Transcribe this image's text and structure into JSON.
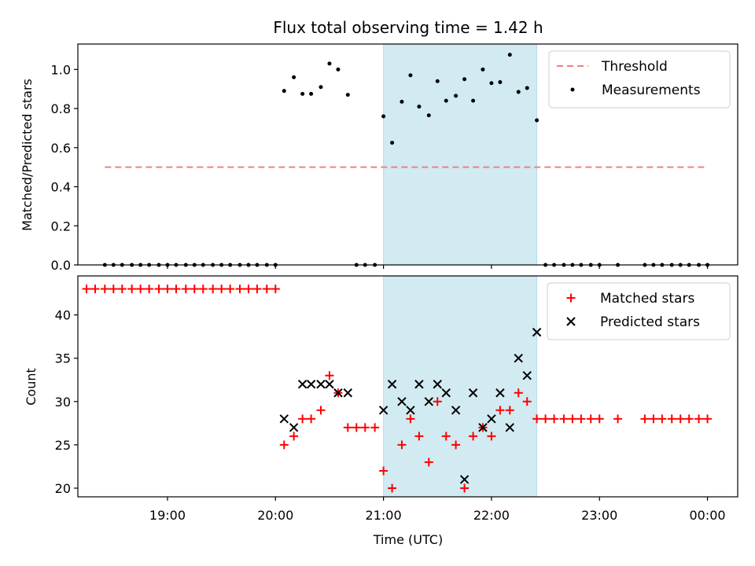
{
  "chart_data": [
    {
      "type": "scatter",
      "title": "Flux total observing time = 1.42 h",
      "ylabel": "Matched/Predicted stars",
      "xlabel": "",
      "xlim": [
        18.17,
        24.28
      ],
      "ylim": [
        0,
        1.13
      ],
      "yticks": [
        0.0,
        0.2,
        0.4,
        0.6,
        0.8,
        1.0
      ],
      "ytick_labels": [
        "0.0",
        "0.2",
        "0.4",
        "0.6",
        "0.8",
        "1.0"
      ],
      "shaded_span": {
        "x0": 21.0,
        "x1": 22.42,
        "color": "#add8e6"
      },
      "legend": {
        "position": "top-right"
      },
      "threshold": {
        "name": "Threshold",
        "x": [
          18.42,
          24.0
        ],
        "y": 0.5,
        "color": "#f08080"
      },
      "series": [
        {
          "name": "Measurements",
          "color": "#000000",
          "x": [
            18.42,
            18.5,
            18.58,
            18.67,
            18.75,
            18.83,
            18.92,
            19.0,
            19.08,
            19.17,
            19.25,
            19.33,
            19.42,
            19.5,
            19.58,
            19.67,
            19.75,
            19.83,
            19.92,
            20.0,
            20.08,
            20.17,
            20.25,
            20.33,
            20.42,
            20.5,
            20.58,
            20.67,
            20.75,
            20.83,
            20.92,
            21.0,
            21.08,
            21.17,
            21.25,
            21.33,
            21.42,
            21.5,
            21.58,
            21.67,
            21.75,
            21.83,
            21.92,
            22.0,
            22.08,
            22.17,
            22.25,
            22.33,
            22.42,
            22.5,
            22.58,
            22.67,
            22.75,
            22.83,
            22.92,
            23.0,
            23.17,
            23.42,
            23.5,
            23.58,
            23.67,
            23.75,
            23.83,
            23.92,
            24.0
          ],
          "y": [
            0,
            0,
            0,
            0,
            0,
            0,
            0,
            0,
            0,
            0,
            0,
            0,
            0,
            0,
            0,
            0,
            0,
            0,
            0,
            0,
            0.89,
            0.96,
            0.875,
            0.875,
            0.91,
            1.03,
            1.0,
            0.87,
            0,
            0,
            0,
            0.76,
            0.625,
            0.835,
            0.97,
            0.81,
            0.765,
            0.94,
            0.84,
            0.865,
            0.95,
            0.84,
            1.0,
            0.93,
            0.935,
            1.075,
            0.885,
            0.905,
            0.74,
            0,
            0,
            0,
            0,
            0,
            0,
            0,
            0,
            0,
            0,
            0,
            0,
            0,
            0,
            0,
            0
          ]
        }
      ]
    },
    {
      "type": "scatter",
      "title": "",
      "ylabel": "Count",
      "xlabel": "Time (UTC)",
      "xlim": [
        18.17,
        24.28
      ],
      "ylim": [
        19,
        44.5
      ],
      "yticks": [
        20,
        25,
        30,
        35,
        40
      ],
      "ytick_labels": [
        "20",
        "25",
        "30",
        "35",
        "40"
      ],
      "xticks": [
        19,
        20,
        21,
        22,
        23,
        24
      ],
      "xtick_labels": [
        "19:00",
        "20:00",
        "21:00",
        "22:00",
        "23:00",
        "00:00"
      ],
      "shaded_span": {
        "x0": 21.0,
        "x1": 22.42,
        "color": "#add8e6"
      },
      "legend": {
        "position": "top-right"
      },
      "series": [
        {
          "name": "Matched stars",
          "color": "#ff0000",
          "marker": "plus",
          "x": [
            18.25,
            18.33,
            18.42,
            18.5,
            18.58,
            18.67,
            18.75,
            18.83,
            18.92,
            19.0,
            19.08,
            19.17,
            19.25,
            19.33,
            19.42,
            19.5,
            19.58,
            19.67,
            19.75,
            19.83,
            19.92,
            20.0,
            20.08,
            20.17,
            20.25,
            20.33,
            20.42,
            20.5,
            20.58,
            20.67,
            20.75,
            20.83,
            20.92,
            21.0,
            21.08,
            21.17,
            21.25,
            21.33,
            21.42,
            21.5,
            21.58,
            21.67,
            21.75,
            21.83,
            21.92,
            22.0,
            22.08,
            22.17,
            22.25,
            22.33,
            22.42,
            22.5,
            22.58,
            22.67,
            22.75,
            22.83,
            22.92,
            23.0,
            23.17,
            23.42,
            23.5,
            23.58,
            23.67,
            23.75,
            23.83,
            23.92,
            24.0
          ],
          "y": [
            43,
            43,
            43,
            43,
            43,
            43,
            43,
            43,
            43,
            43,
            43,
            43,
            43,
            43,
            43,
            43,
            43,
            43,
            43,
            43,
            43,
            43,
            25,
            26,
            28,
            28,
            29,
            33,
            31,
            27,
            27,
            27,
            27,
            22,
            20,
            25,
            28,
            26,
            23,
            30,
            26,
            25,
            20,
            26,
            27,
            26,
            29,
            29,
            31,
            30,
            28,
            28,
            28,
            28,
            28,
            28,
            28,
            28,
            28,
            28,
            28,
            28,
            28,
            28,
            28,
            28,
            28
          ]
        },
        {
          "name": "Predicted stars",
          "color": "#000000",
          "marker": "cross",
          "x": [
            20.08,
            20.17,
            20.25,
            20.33,
            20.42,
            20.5,
            20.58,
            20.67,
            21.0,
            21.08,
            21.17,
            21.25,
            21.33,
            21.42,
            21.5,
            21.58,
            21.67,
            21.75,
            21.83,
            21.92,
            22.0,
            22.08,
            22.17,
            22.25,
            22.33,
            22.42
          ],
          "y": [
            28,
            27,
            32,
            32,
            32,
            32,
            31,
            31,
            29,
            32,
            30,
            29,
            32,
            30,
            32,
            31,
            29,
            21,
            31,
            27,
            28,
            31,
            27,
            35,
            33,
            38
          ]
        }
      ]
    }
  ]
}
